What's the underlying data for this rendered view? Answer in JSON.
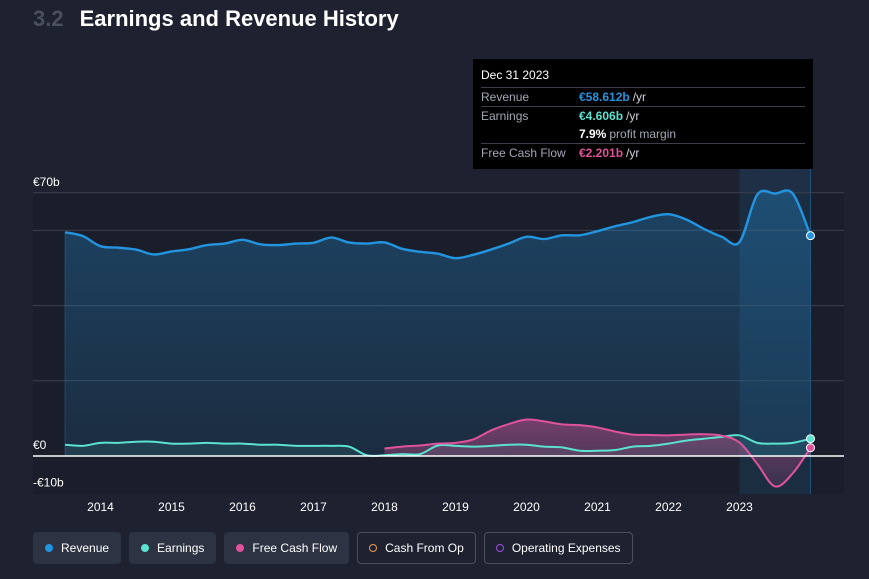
{
  "header": {
    "section_number": "3.2",
    "title": "Earnings and Revenue History"
  },
  "tooltip": {
    "date": "Dec 31 2023",
    "revenue_label": "Revenue",
    "revenue_value": "€58.612b",
    "revenue_unit": "/yr",
    "earnings_label": "Earnings",
    "earnings_value": "€4.606b",
    "earnings_unit": "/yr",
    "margin_value": "7.9%",
    "margin_label": "profit margin",
    "fcf_label": "Free Cash Flow",
    "fcf_value": "€2.201b",
    "fcf_unit": "/yr"
  },
  "legend": [
    {
      "label": "Revenue",
      "color": "#2394df",
      "style": "filled"
    },
    {
      "label": "Earnings",
      "color": "#5be2d0",
      "style": "filled"
    },
    {
      "label": "Free Cash Flow",
      "color": "#e0539a",
      "style": "filled"
    },
    {
      "label": "Cash From Op",
      "color": "#e89b4f",
      "style": "hollow"
    },
    {
      "label": "Operating Expenses",
      "color": "#a34fdf",
      "style": "hollow"
    }
  ],
  "colors": {
    "background": "#1e2230",
    "revenue": "#2394df",
    "earnings": "#5be2d0",
    "fcf": "#e0539a",
    "grid": "#3b4050",
    "zero_line": "#ffffff",
    "axis_text": "#ffffff"
  },
  "chart_data": {
    "type": "area",
    "title": "Earnings and Revenue History",
    "xlabel": "",
    "ylabel": "",
    "unit": "€ billions",
    "xlim": [
      2013.5,
      2024.0
    ],
    "ylim": [
      -10,
      70
    ],
    "ytick_labels": [
      {
        "value": 70,
        "label": "€70b"
      },
      {
        "value": 0,
        "label": "€0"
      },
      {
        "value": -10,
        "label": "-€10b"
      }
    ],
    "xtick_labels": [
      "2014",
      "2015",
      "2016",
      "2017",
      "2018",
      "2019",
      "2020",
      "2021",
      "2022",
      "2023"
    ],
    "xtick_values": [
      2014,
      2015,
      2016,
      2017,
      2018,
      2019,
      2020,
      2021,
      2022,
      2023
    ],
    "highlight_period": [
      2023.0,
      2024.0
    ],
    "hover_x": 2024.0,
    "series": [
      {
        "name": "Revenue",
        "x": [
          2013.5,
          2013.75,
          2014.0,
          2014.25,
          2014.5,
          2014.75,
          2015.0,
          2015.25,
          2015.5,
          2015.75,
          2016.0,
          2016.25,
          2016.5,
          2016.75,
          2017.0,
          2017.25,
          2017.5,
          2017.75,
          2018.0,
          2018.25,
          2018.5,
          2018.75,
          2019.0,
          2019.25,
          2019.5,
          2019.75,
          2020.0,
          2020.25,
          2020.5,
          2020.75,
          2021.0,
          2021.25,
          2021.5,
          2021.75,
          2022.0,
          2022.25,
          2022.5,
          2022.75,
          2023.0,
          2023.25,
          2023.5,
          2023.75,
          2024.0
        ],
        "values": [
          59.5,
          58.5,
          55.8,
          55.4,
          54.9,
          53.6,
          54.4,
          55.0,
          56.1,
          56.5,
          57.5,
          56.3,
          56.1,
          56.5,
          56.7,
          58.1,
          56.8,
          56.5,
          56.8,
          55.1,
          54.3,
          53.8,
          52.6,
          53.5,
          54.9,
          56.5,
          58.3,
          57.7,
          58.7,
          58.7,
          59.8,
          61.1,
          62.2,
          63.6,
          64.3,
          62.9,
          60.4,
          58.3,
          56.9,
          69.5,
          69.8,
          69.8,
          58.6
        ]
      },
      {
        "name": "Earnings",
        "x": [
          2013.5,
          2013.75,
          2014.0,
          2014.25,
          2014.5,
          2014.75,
          2015.0,
          2015.25,
          2015.5,
          2015.75,
          2016.0,
          2016.25,
          2016.5,
          2016.75,
          2017.0,
          2017.25,
          2017.5,
          2017.75,
          2018.0,
          2018.25,
          2018.5,
          2018.75,
          2019.0,
          2019.25,
          2019.5,
          2019.75,
          2020.0,
          2020.25,
          2020.5,
          2020.75,
          2021.0,
          2021.25,
          2021.5,
          2021.75,
          2022.0,
          2022.25,
          2022.5,
          2022.75,
          2023.0,
          2023.25,
          2023.5,
          2023.75,
          2024.0
        ],
        "values": [
          3.0,
          2.7,
          3.5,
          3.5,
          3.8,
          3.8,
          3.3,
          3.3,
          3.5,
          3.3,
          3.3,
          3.0,
          3.0,
          2.7,
          2.7,
          2.7,
          2.5,
          0.2,
          0.2,
          0.5,
          0.5,
          2.8,
          2.7,
          2.5,
          2.7,
          3.0,
          3.0,
          2.5,
          2.3,
          1.4,
          1.4,
          1.6,
          2.5,
          2.7,
          3.3,
          4.1,
          4.6,
          5.1,
          5.5,
          3.5,
          3.3,
          3.5,
          4.6
        ]
      },
      {
        "name": "Free Cash Flow",
        "x": [
          2018.0,
          2018.25,
          2018.5,
          2018.75,
          2019.0,
          2019.25,
          2019.5,
          2019.75,
          2020.0,
          2020.25,
          2020.5,
          2020.75,
          2021.0,
          2021.25,
          2021.5,
          2021.75,
          2022.0,
          2022.25,
          2022.5,
          2022.75,
          2023.0,
          2023.25,
          2023.5,
          2023.75,
          2024.0
        ],
        "values": [
          2.0,
          2.5,
          2.8,
          3.3,
          3.5,
          4.4,
          6.8,
          8.5,
          9.7,
          9.2,
          8.4,
          8.2,
          7.6,
          6.5,
          5.7,
          5.6,
          5.5,
          5.7,
          5.8,
          5.4,
          3.6,
          -2.1,
          -8.1,
          -4.6,
          2.2
        ]
      }
    ]
  }
}
